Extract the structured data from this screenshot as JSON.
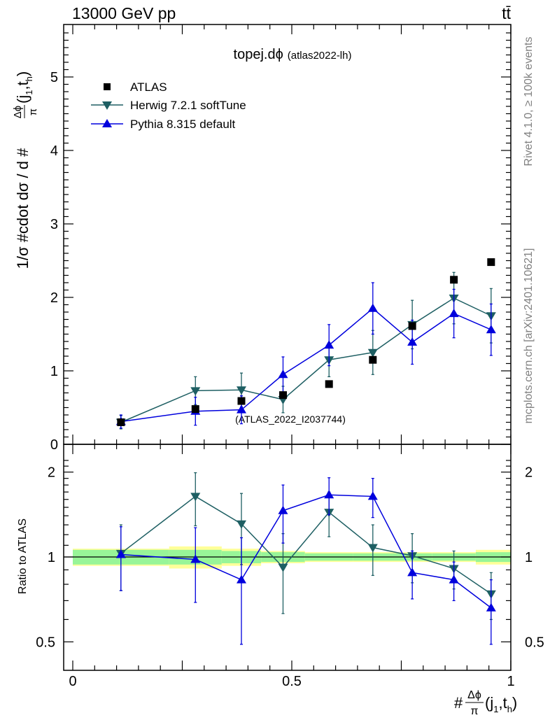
{
  "header": {
    "energy": "13000 GeV pp",
    "process": "tt̄"
  },
  "side": {
    "rivet": "Rivet 4.1.0, ≥ 100k events",
    "mcplots": "mcplots.cern.ch [arXiv:2401.10621]"
  },
  "labels": {
    "ratio_axis": "Ratio to ATLAS"
  },
  "chart_data": {
    "type": "scatter",
    "title_main": "topej.dϕ",
    "title_sub": "(atlas2022-lh)",
    "watermark": "(ATLAS_2022_I2037744)",
    "ylabel": "1/σ #cdot dσ / d #Δϕπ(j1,t h)",
    "ylabel_parts": [
      "1/σ #cdot dσ / d #",
      "Δϕ",
      "π",
      "(j",
      "1",
      ",t",
      "h",
      ")"
    ],
    "xlabel_parts": [
      "#",
      "Δϕ",
      "π",
      "(j",
      "1",
      ",t",
      "h",
      ")"
    ],
    "xlim": [
      0,
      1
    ],
    "ylim": [
      0,
      5.7
    ],
    "ratio_ylim": [
      0.4,
      2.3
    ],
    "x_ticks": [
      {
        "v": 0,
        "label": "0"
      },
      {
        "v": 0.5,
        "label": "0.5"
      },
      {
        "v": 1,
        "label": "1"
      }
    ],
    "y_ticks": [
      {
        "v": 0,
        "label": "0"
      },
      {
        "v": 1,
        "label": "1"
      },
      {
        "v": 2,
        "label": "2"
      },
      {
        "v": 3,
        "label": "3"
      },
      {
        "v": 4,
        "label": "4"
      },
      {
        "v": 5,
        "label": "5"
      }
    ],
    "ratio_ticks": [
      {
        "v": 0.5,
        "label": "0.5"
      },
      {
        "v": 1,
        "label": "1"
      },
      {
        "v": 2,
        "label": "2"
      }
    ],
    "x": [
      0.11,
      0.28,
      0.385,
      0.48,
      0.585,
      0.685,
      0.775,
      0.87,
      0.955
    ],
    "bin_edges": [
      0,
      0.22,
      0.34,
      0.43,
      0.53,
      0.64,
      0.73,
      0.82,
      0.92,
      1.0
    ],
    "series": [
      {
        "name": "ATLAS",
        "marker": "square",
        "color": "#000000",
        "values": [
          0.3,
          0.48,
          0.59,
          0.67,
          0.82,
          1.15,
          1.61,
          2.24,
          2.48
        ],
        "band_inner": [
          0.06,
          0.06,
          0.05,
          0.04,
          0.03,
          0.03,
          0.03,
          0.03,
          0.04
        ],
        "band_outer": [
          0.07,
          0.09,
          0.07,
          0.05,
          0.04,
          0.04,
          0.04,
          0.04,
          0.06
        ]
      },
      {
        "name": "Herwig 7.2.1 softTune",
        "marker": "triangle-down",
        "color": "#1e5f63",
        "values": [
          0.3,
          0.73,
          0.74,
          0.61,
          1.15,
          1.25,
          1.63,
          1.99,
          1.75
        ],
        "errors": [
          0.09,
          0.19,
          0.23,
          0.18,
          0.23,
          0.3,
          0.33,
          0.35,
          0.37
        ],
        "ratio": [
          1.03,
          1.64,
          1.31,
          0.92,
          1.44,
          1.08,
          1.01,
          0.91,
          0.74
        ],
        "ratio_err": [
          0.27,
          0.35,
          0.37,
          0.29,
          0.26,
          0.22,
          0.2,
          0.14,
          0.14
        ]
      },
      {
        "name": "Pythia 8.315 default",
        "marker": "triangle-up",
        "color": "#0000dd",
        "values": [
          0.31,
          0.45,
          0.47,
          0.95,
          1.35,
          1.85,
          1.39,
          1.78,
          1.56
        ],
        "errors": [
          0.09,
          0.19,
          0.19,
          0.24,
          0.28,
          0.35,
          0.3,
          0.33,
          0.35
        ],
        "ratio": [
          1.02,
          0.98,
          0.83,
          1.46,
          1.66,
          1.64,
          0.88,
          0.83,
          0.66
        ],
        "ratio_err": [
          0.26,
          0.29,
          0.34,
          0.34,
          0.25,
          0.26,
          0.17,
          0.13,
          0.17
        ]
      }
    ]
  }
}
